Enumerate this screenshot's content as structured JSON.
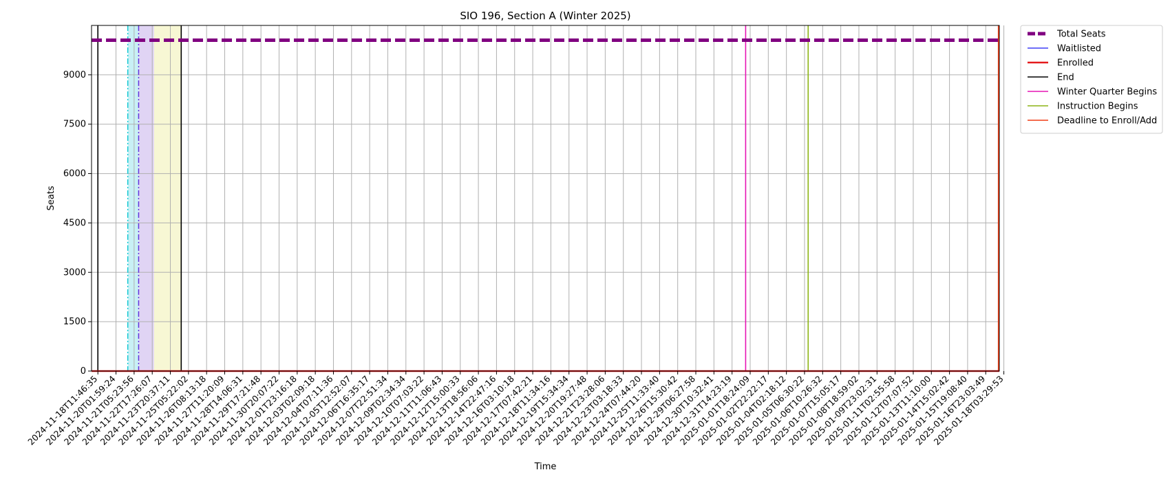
{
  "chart_data": {
    "type": "line",
    "title": "SIO 196, Section A (Winter 2025)",
    "xlabel": "Time",
    "ylabel": "Seats",
    "ylim": [
      0,
      10500
    ],
    "yticks": [
      0,
      1500,
      3000,
      4500,
      6000,
      7500,
      9000
    ],
    "grid": true,
    "legend_position": "outside-right",
    "x_categories": [
      "2024-11-18T11:46:35",
      "2024-11-20T01:59:24",
      "2024-11-21T05:23:56",
      "2024-11-22T17:26:07",
      "2024-11-23T20:37:11",
      "2024-11-25T05:22:02",
      "2024-11-26T08:13:18",
      "2024-11-27T11:20:09",
      "2024-11-28T14:06:31",
      "2024-11-29T17:21:48",
      "2024-11-30T20:07:22",
      "2024-12-01T23:16:18",
      "2024-12-03T02:09:18",
      "2024-12-04T07:11:36",
      "2024-12-05T12:52:07",
      "2024-12-06T16:35:17",
      "2024-12-07T22:51:34",
      "2024-12-09T02:34:34",
      "2024-12-10T07:03:22",
      "2024-12-11T11:06:43",
      "2024-12-12T15:00:33",
      "2024-12-13T18:56:06",
      "2024-12-14T22:47:16",
      "2024-12-16T03:10:18",
      "2024-12-17T07:42:21",
      "2024-12-18T11:34:16",
      "2024-12-19T15:34:34",
      "2024-12-20T19:27:48",
      "2024-12-21T23:28:06",
      "2024-12-23T03:18:33",
      "2024-12-24T07:44:20",
      "2024-12-25T11:33:40",
      "2024-12-26T15:30:42",
      "2024-12-29T06:27:58",
      "2024-12-30T10:32:41",
      "2024-12-31T14:23:19",
      "2025-01-01T18:24:09",
      "2025-01-02T22:22:17",
      "2025-01-04T02:18:12",
      "2025-01-05T06:30:22",
      "2025-01-06T10:26:32",
      "2025-01-07T15:05:17",
      "2025-01-08T18:59:02",
      "2025-01-09T23:02:31",
      "2025-01-11T02:55:58",
      "2025-01-12T07:07:52",
      "2025-01-13T11:10:00",
      "2025-01-14T15:02:42",
      "2025-01-15T19:08:40",
      "2025-01-16T23:03:49",
      "2025-01-18T03:29:53"
    ],
    "x_range_index": [
      -0.35,
      49.75
    ],
    "series": [
      {
        "name": "Total Seats",
        "value": 10050,
        "color": "#800080",
        "style": "dashed-thick"
      },
      {
        "name": "Waitlisted",
        "value": 0,
        "color": "#3d3df5",
        "style": "solid"
      },
      {
        "name": "Enrolled",
        "value": 0,
        "color": "#e41a1c",
        "style": "solid-thick"
      }
    ],
    "vertical_markers": [
      {
        "name": "End",
        "x_index": 0.0,
        "color": "#000000",
        "style": "solid"
      },
      {
        "name": "End",
        "x_index": 4.6,
        "color": "#000000",
        "style": "solid"
      },
      {
        "name": "Winter Quarter Begins",
        "x_index": 35.75,
        "color": "#e614b4",
        "style": "solid"
      },
      {
        "name": "Instruction Begins",
        "x_index": 39.2,
        "color": "#8cb414",
        "style": "solid"
      },
      {
        "name": "Deadline to Enroll/Add",
        "x_index": 49.7,
        "color": "#f03c14",
        "style": "solid"
      }
    ],
    "shaded_regions": [
      {
        "from_index": 1.65,
        "to_index": 2.25,
        "color": "#c8f0f5"
      },
      {
        "from_index": 2.25,
        "to_index": 3.1,
        "color": "#e0d4f4"
      },
      {
        "from_index": 3.1,
        "to_index": 4.6,
        "color": "#f7f7d4"
      }
    ],
    "dashdot_markers": [
      {
        "x_index": 1.65,
        "color": "#14c8d2"
      },
      {
        "x_index": 2.25,
        "color": "#6432dc"
      }
    ],
    "legend": [
      {
        "label": "Total Seats",
        "color": "#800080",
        "style": "dashed-thick"
      },
      {
        "label": "Waitlisted",
        "color": "#3d3df5",
        "style": "solid"
      },
      {
        "label": "Enrolled",
        "color": "#e41a1c",
        "style": "solid-thick"
      },
      {
        "label": "End",
        "color": "#000000",
        "style": "solid"
      },
      {
        "label": "Winter Quarter Begins",
        "color": "#e614b4",
        "style": "solid"
      },
      {
        "label": "Instruction Begins",
        "color": "#8cb414",
        "style": "solid"
      },
      {
        "label": "Deadline to Enroll/Add",
        "color": "#f03c14",
        "style": "solid"
      }
    ]
  }
}
